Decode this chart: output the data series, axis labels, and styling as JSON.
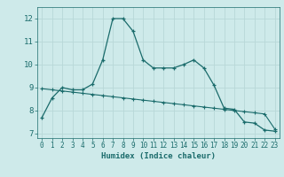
{
  "xlabel": "Humidex (Indice chaleur)",
  "background_color": "#ceeaea",
  "grid_color": "#b8d8d8",
  "line_color": "#1a6b6b",
  "xlim": [
    -0.5,
    23.5
  ],
  "ylim": [
    6.8,
    12.5
  ],
  "yticks": [
    7,
    8,
    9,
    10,
    11,
    12
  ],
  "xticks": [
    0,
    1,
    2,
    3,
    4,
    5,
    6,
    7,
    8,
    9,
    10,
    11,
    12,
    13,
    14,
    15,
    16,
    17,
    18,
    19,
    20,
    21,
    22,
    23
  ],
  "curve1_x": [
    0,
    1,
    2,
    3,
    4,
    5,
    6,
    7,
    8,
    9,
    10,
    11,
    12,
    13,
    14,
    15,
    16,
    17,
    18,
    19,
    20,
    21,
    22,
    23
  ],
  "curve1_y": [
    7.7,
    8.55,
    9.0,
    8.9,
    8.9,
    9.15,
    10.2,
    12.0,
    12.0,
    11.45,
    10.2,
    9.85,
    9.85,
    9.85,
    10.0,
    10.2,
    9.85,
    9.1,
    8.1,
    8.05,
    7.5,
    7.45,
    7.15,
    7.1
  ],
  "curve2_x": [
    0,
    1,
    2,
    3,
    4,
    5,
    6,
    7,
    8,
    9,
    10,
    11,
    12,
    13,
    14,
    15,
    16,
    17,
    18,
    19,
    20,
    21,
    22,
    23
  ],
  "curve2_y": [
    8.95,
    8.9,
    8.85,
    8.8,
    8.75,
    8.7,
    8.65,
    8.6,
    8.55,
    8.5,
    8.45,
    8.4,
    8.35,
    8.3,
    8.25,
    8.2,
    8.15,
    8.1,
    8.05,
    8.0,
    7.95,
    7.9,
    7.85,
    7.2
  ]
}
